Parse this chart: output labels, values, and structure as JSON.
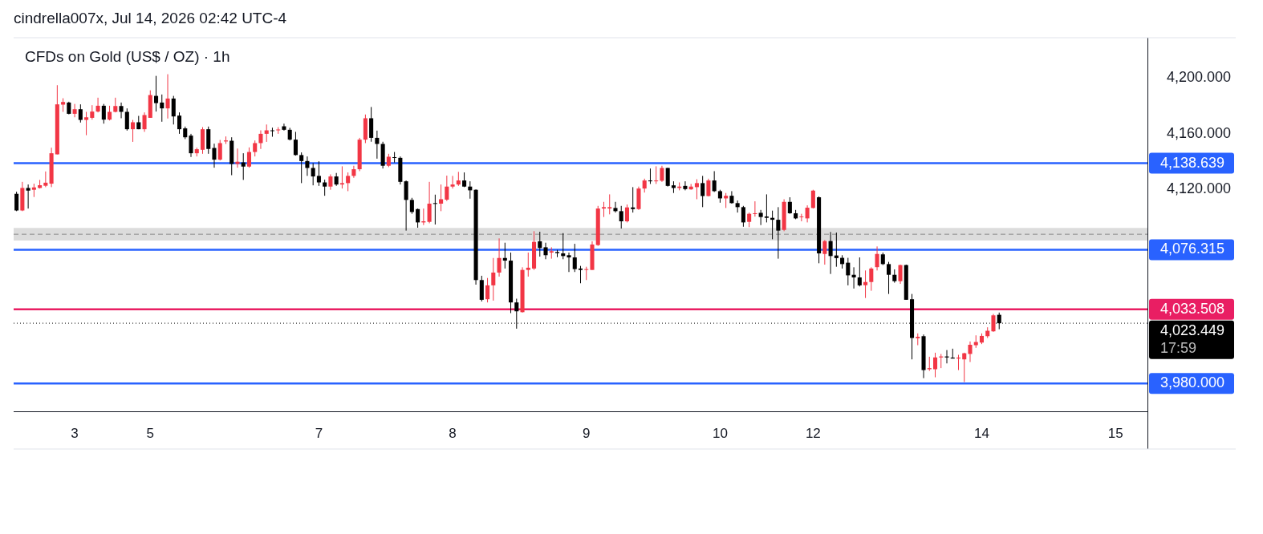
{
  "chart_data": {
    "type": "candlestick",
    "title": "CFDs on Gold (US$ / OZ) · 1h",
    "annotations": [
      "cindrella007x, Jul 14, 2026 02:42 UTC-4"
    ],
    "categories": [
      null,
      null,
      null,
      null,
      null,
      null,
      null,
      null,
      null,
      null,
      "3",
      null,
      null,
      null,
      null,
      null,
      null,
      null,
      null,
      null,
      null,
      null,
      null,
      "5",
      null,
      null,
      null,
      null,
      null,
      null,
      null,
      null,
      null,
      null,
      null,
      null,
      null,
      null,
      null,
      null,
      null,
      null,
      null,
      null,
      null,
      null,
      null,
      null,
      null,
      null,
      null,
      null,
      "7",
      null,
      null,
      null,
      null,
      null,
      null,
      null,
      null,
      null,
      null,
      null,
      null,
      null,
      null,
      null,
      null,
      null,
      null,
      null,
      null,
      null,
      null,
      "8",
      null,
      null,
      null,
      null,
      null,
      null,
      null,
      null,
      null,
      null,
      null,
      null,
      null,
      null,
      null,
      null,
      null,
      null,
      null,
      null,
      null,
      null,
      "9",
      null,
      null,
      null,
      null,
      null,
      null,
      null,
      null,
      null,
      null,
      null,
      null,
      null,
      null,
      null,
      null,
      null,
      null,
      null,
      null,
      null,
      null,
      "10",
      null,
      null,
      null,
      null,
      null,
      null,
      null,
      null,
      null,
      null,
      null,
      null,
      null,
      null,
      null,
      "12",
      null,
      null,
      null,
      null,
      null,
      null,
      null,
      null,
      null,
      null,
      null,
      null,
      null,
      null,
      null,
      null,
      null,
      null,
      null,
      null,
      null,
      null,
      null,
      null,
      null,
      null,
      null,
      null,
      "14",
      null,
      null,
      null,
      null,
      null,
      null,
      null,
      null,
      null,
      null,
      null,
      null,
      null,
      null,
      null,
      null,
      null,
      null,
      null,
      null,
      null,
      null,
      "15",
      null,
      null,
      null,
      null,
      null
    ],
    "ohlc": [
      [
        4116.6,
        4118.1,
        4104.1,
        4104.6
      ],
      [
        4104.6,
        4125.2,
        4104.1,
        4120.8
      ],
      [
        4120.8,
        4123.3,
        4106.0,
        4118.9
      ],
      [
        4119.5,
        4123.9,
        4114.3,
        4121.2
      ],
      [
        4120.8,
        4126.6,
        4120.4,
        4122.8
      ],
      [
        4122.4,
        4132.7,
        4121.4,
        4124.6
      ],
      [
        4123.9,
        4149.8,
        4121.4,
        4145.8
      ],
      [
        4145.0,
        4194.8,
        4145.0,
        4181.0
      ],
      [
        4180.8,
        4185.4,
        4175.6,
        4182.7
      ],
      [
        4182.3,
        4182.9,
        4173.8,
        4174.2
      ],
      [
        4174.2,
        4181.3,
        4171.7,
        4177.5
      ],
      [
        4177.5,
        4181.0,
        4167.9,
        4169.8
      ],
      [
        4169.8,
        4175.6,
        4158.8,
        4171.7
      ],
      [
        4171.3,
        4180.4,
        4170.0,
        4175.8
      ],
      [
        4175.8,
        4185.8,
        4175.2,
        4180.0
      ],
      [
        4180.0,
        4181.3,
        4167.1,
        4170.0
      ],
      [
        4170.0,
        4180.0,
        4169.4,
        4175.6
      ],
      [
        4175.6,
        4185.8,
        4175.2,
        4179.8
      ],
      [
        4179.8,
        4182.3,
        4171.0,
        4175.6
      ],
      [
        4175.6,
        4178.1,
        4162.1,
        4163.1
      ],
      [
        4163.1,
        4169.8,
        4154.0,
        4168.1
      ],
      [
        4168.1,
        4172.7,
        4163.1,
        4163.1
      ],
      [
        4163.1,
        4175.2,
        4161.2,
        4173.3
      ],
      [
        4171.3,
        4191.1,
        4171.3,
        4187.7
      ],
      [
        4187.1,
        4201.5,
        4175.8,
        4181.9
      ],
      [
        4182.3,
        4188.1,
        4168.5,
        4178.1
      ],
      [
        4178.1,
        4202.7,
        4170.8,
        4185.2
      ],
      [
        4185.2,
        4187.1,
        4166.5,
        4172.3
      ],
      [
        4172.9,
        4175.2,
        4159.8,
        4163.1
      ],
      [
        4163.7,
        4165.0,
        4156.0,
        4157.3
      ],
      [
        4158.5,
        4159.8,
        4143.1,
        4145.8
      ],
      [
        4145.8,
        4149.8,
        4143.5,
        4148.7
      ],
      [
        4148.3,
        4164.6,
        4145.4,
        4163.1
      ],
      [
        4163.1,
        4165.0,
        4145.4,
        4148.9
      ],
      [
        4149.6,
        4152.7,
        4135.4,
        4141.2
      ],
      [
        4141.2,
        4155.4,
        4140.6,
        4153.1
      ],
      [
        4154.3,
        4157.9,
        4152.5,
        4155.0
      ],
      [
        4154.8,
        4157.3,
        4130.0,
        4138.1
      ],
      [
        4138.1,
        4149.2,
        4135.4,
        4139.7
      ],
      [
        4139.2,
        4145.8,
        4126.6,
        4136.2
      ],
      [
        4136.2,
        4150.0,
        4135.4,
        4146.7
      ],
      [
        4146.7,
        4155.0,
        4143.5,
        4153.1
      ],
      [
        4153.1,
        4162.3,
        4148.9,
        4159.8
      ],
      [
        4159.8,
        4166.5,
        4154.0,
        4162.3
      ],
      [
        4162.3,
        4164.2,
        4157.7,
        4162.1
      ],
      [
        4162.3,
        4164.6,
        4159.8,
        4162.9
      ],
      [
        4165.2,
        4167.1,
        4162.1,
        4162.7
      ],
      [
        4162.7,
        4164.1,
        4155.0,
        4155.6
      ],
      [
        4155.6,
        4161.2,
        4144.1,
        4144.5
      ],
      [
        4144.5,
        4146.4,
        4124.3,
        4140.2
      ],
      [
        4140.2,
        4143.5,
        4129.5,
        4135.2
      ],
      [
        4135.2,
        4138.7,
        4122.7,
        4129.1
      ],
      [
        4129.5,
        4140.0,
        4122.3,
        4124.8
      ],
      [
        4124.8,
        4126.8,
        4115.2,
        4121.8
      ],
      [
        4121.8,
        4130.6,
        4119.5,
        4129.1
      ],
      [
        4129.1,
        4131.6,
        4122.3,
        4123.3
      ],
      [
        4123.3,
        4136.4,
        4120.4,
        4124.3
      ],
      [
        4124.3,
        4132.0,
        4118.5,
        4129.5
      ],
      [
        4129.5,
        4136.8,
        4128.1,
        4134.3
      ],
      [
        4134.3,
        4156.9,
        4132.9,
        4155.6
      ],
      [
        4155.6,
        4173.7,
        4153.1,
        4171.0
      ],
      [
        4171.0,
        4179.1,
        4154.1,
        4156.9
      ],
      [
        4156.9,
        4162.1,
        4141.9,
        4152.5
      ],
      [
        4152.5,
        4154.1,
        4134.8,
        4136.8
      ],
      [
        4136.8,
        4145.4,
        4135.8,
        4143.3
      ],
      [
        4143.0,
        4146.7,
        4139.1,
        4142.5
      ],
      [
        4142.5,
        4143.5,
        4123.3,
        4125.2
      ],
      [
        4125.6,
        4126.2,
        4090.1,
        4112.2
      ],
      [
        4112.2,
        4113.7,
        4102.2,
        4103.5
      ],
      [
        4105.6,
        4106.0,
        4092.2,
        4096.0
      ],
      [
        4096.0,
        4106.0,
        4094.1,
        4096.8
      ],
      [
        4096.4,
        4125.2,
        4095.4,
        4109.5
      ],
      [
        4109.9,
        4116.0,
        4094.5,
        4109.5
      ],
      [
        4109.5,
        4123.3,
        4104.1,
        4112.7
      ],
      [
        4112.4,
        4129.7,
        4111.4,
        4121.8
      ],
      [
        4121.8,
        4129.5,
        4120.4,
        4123.3
      ],
      [
        4123.3,
        4132.4,
        4122.3,
        4126.2
      ],
      [
        4126.2,
        4132.0,
        4121.4,
        4121.8
      ],
      [
        4121.8,
        4125.6,
        4113.1,
        4119.1
      ],
      [
        4119.5,
        4119.8,
        4051.2,
        4054.5
      ],
      [
        4054.5,
        4057.6,
        4039.1,
        4040.3
      ],
      [
        4040.7,
        4056.0,
        4038.4,
        4050.7
      ],
      [
        4050.7,
        4070.4,
        4039.7,
        4059.9
      ],
      [
        4059.9,
        4084.5,
        4057.0,
        4070.4
      ],
      [
        4070.4,
        4081.4,
        4062.8,
        4068.5
      ],
      [
        4068.5,
        4074.3,
        4030.7,
        4038.4
      ],
      [
        4038.4,
        4041.1,
        4019.5,
        4032.0
      ],
      [
        4031.4,
        4063.7,
        4031.1,
        4061.8
      ],
      [
        4061.8,
        4074.3,
        4057.0,
        4063.4
      ],
      [
        4062.8,
        4089.7,
        4061.8,
        4082.0
      ],
      [
        4082.4,
        4089.3,
        4071.4,
        4077.6
      ],
      [
        4078.1,
        4081.4,
        4069.5,
        4072.4
      ],
      [
        4074.3,
        4078.1,
        4069.9,
        4075.3
      ],
      [
        4074.7,
        4076.2,
        4071.0,
        4073.9
      ],
      [
        4073.7,
        4088.3,
        4069.5,
        4071.8
      ],
      [
        4072.4,
        4074.3,
        4060.3,
        4070.8
      ],
      [
        4070.8,
        4080.6,
        4060.3,
        4062.4
      ],
      [
        4062.8,
        4064.7,
        4052.2,
        4061.8
      ],
      [
        4061.8,
        4064.1,
        4054.5,
        4062.4
      ],
      [
        4061.8,
        4082.4,
        4061.8,
        4080.1
      ],
      [
        4079.7,
        4107.9,
        4079.1,
        4106.0
      ],
      [
        4106.0,
        4110.8,
        4099.9,
        4107.0
      ],
      [
        4106.0,
        4116.2,
        4101.8,
        4107.0
      ],
      [
        4106.4,
        4110.8,
        4103.1,
        4104.1
      ],
      [
        4104.1,
        4107.9,
        4091.6,
        4096.8
      ],
      [
        4096.8,
        4108.9,
        4096.0,
        4106.8
      ],
      [
        4106.8,
        4121.4,
        4103.1,
        4105.6
      ],
      [
        4105.6,
        4121.8,
        4105.0,
        4120.4
      ],
      [
        4120.4,
        4127.5,
        4117.5,
        4126.2
      ],
      [
        4126.2,
        4134.8,
        4123.7,
        4125.6
      ],
      [
        4125.6,
        4136.4,
        4123.7,
        4126.2
      ],
      [
        4126.0,
        4136.8,
        4125.2,
        4135.2
      ],
      [
        4135.2,
        4135.3,
        4121.8,
        4122.3
      ],
      [
        4122.7,
        4125.6,
        4117.2,
        4120.8
      ],
      [
        4120.8,
        4124.8,
        4119.1,
        4121.8
      ],
      [
        4122.3,
        4125.6,
        4119.1,
        4120.0
      ],
      [
        4119.8,
        4123.7,
        4119.5,
        4121.8
      ],
      [
        4121.4,
        4127.1,
        4112.7,
        4124.3
      ],
      [
        4124.3,
        4129.5,
        4107.0,
        4115.0
      ],
      [
        4115.0,
        4127.5,
        4114.7,
        4126.2
      ],
      [
        4126.2,
        4132.9,
        4117.9,
        4118.5
      ],
      [
        4118.5,
        4119.5,
        4110.2,
        4113.3
      ],
      [
        4113.3,
        4117.2,
        4106.4,
        4115.2
      ],
      [
        4115.2,
        4118.5,
        4109.5,
        4109.9
      ],
      [
        4109.9,
        4111.8,
        4103.1,
        4107.0
      ],
      [
        4107.0,
        4107.9,
        4092.9,
        4096.0
      ],
      [
        4096.4,
        4103.1,
        4092.6,
        4102.2
      ],
      [
        4102.0,
        4111.2,
        4100.2,
        4102.6
      ],
      [
        4102.9,
        4105.0,
        4094.1,
        4099.9
      ],
      [
        4100.3,
        4116.2,
        4096.0,
        4099.3
      ],
      [
        4099.3,
        4104.5,
        4083.9,
        4097.9
      ],
      [
        4097.9,
        4107.0,
        4069.9,
        4090.1
      ],
      [
        4090.6,
        4112.7,
        4089.7,
        4110.8
      ],
      [
        4110.8,
        4114.1,
        4102.2,
        4102.6
      ],
      [
        4102.6,
        4105.0,
        4098.3,
        4098.9
      ],
      [
        4099.9,
        4102.2,
        4096.8,
        4100.3
      ],
      [
        4098.9,
        4108.3,
        4096.0,
        4106.6
      ],
      [
        4106.4,
        4119.5,
        4106.0,
        4118.9
      ],
      [
        4114.1,
        4114.7,
        4066.6,
        4073.7
      ],
      [
        4073.3,
        4083.3,
        4065.6,
        4082.6
      ],
      [
        4082.6,
        4089.1,
        4058.9,
        4071.8
      ],
      [
        4072.2,
        4088.7,
        4064.1,
        4070.3
      ],
      [
        4070.5,
        4072.4,
        4062.8,
        4066.0
      ],
      [
        4067.0,
        4070.5,
        4050.7,
        4057.9
      ],
      [
        4058.3,
        4063.7,
        4048.4,
        4056.4
      ],
      [
        4056.4,
        4070.8,
        4049.9,
        4050.7
      ],
      [
        4050.8,
        4061.4,
        4041.6,
        4053.1
      ],
      [
        4053.1,
        4063.7,
        4046.8,
        4062.8
      ],
      [
        4063.8,
        4078.7,
        4061.4,
        4073.3
      ],
      [
        4073.0,
        4074.3,
        4065.3,
        4066.0
      ],
      [
        4066.0,
        4067.6,
        4044.5,
        4058.3
      ],
      [
        4058.3,
        4062.2,
        4052.6,
        4053.7
      ],
      [
        4053.7,
        4065.6,
        4051.8,
        4065.3
      ],
      [
        4065.3,
        4065.6,
        4040.3,
        4040.3
      ],
      [
        4040.7,
        4044.5,
        3997.4,
        4012.8
      ],
      [
        4012.6,
        4016.1,
        4007.6,
        4013.7
      ],
      [
        4014.1,
        4015.3,
        3983.9,
        3989.7
      ],
      [
        3990.3,
        3999.3,
        3989.1,
        3991.1
      ],
      [
        3990.3,
        4002.2,
        3984.5,
        3998.8
      ],
      [
        3998.8,
        4001.3,
        3991.1,
        3999.5
      ],
      [
        3999.5,
        4004.1,
        3994.5,
        3998.8
      ],
      [
        3998.7,
        4005.1,
        3998.0,
        3998.0
      ],
      [
        3998.0,
        4000.7,
        3989.7,
        3998.7
      ],
      [
        3997.4,
        4002.2,
        3981.1,
        4001.8
      ],
      [
        4001.3,
        4010.3,
        3995.5,
        4007.9
      ],
      [
        4007.6,
        4014.7,
        4005.7,
        4009.9
      ],
      [
        4009.5,
        4016.1,
        4008.4,
        4014.3
      ],
      [
        4014.1,
        4020.5,
        4012.8,
        4018.0
      ],
      [
        4017.6,
        4030.1,
        4017.2,
        4029.1
      ],
      [
        4029.5,
        4031.1,
        4019.1,
        4023.4
      ],
      null,
      null,
      null,
      null,
      null,
      null,
      null,
      null,
      null,
      null,
      null,
      null,
      null,
      null,
      null,
      null,
      null,
      null,
      null,
      null,
      null,
      null,
      null,
      null,
      null
    ],
    "colors": [
      "#000000",
      "#f23645",
      "#000000",
      "#f23645",
      "#f23645",
      "#f23645",
      "#f23645",
      "#f23645",
      "#f23645",
      "#000000",
      "#f23645",
      "#000000",
      "#f23645",
      "#f23645",
      "#f23645",
      "#000000",
      "#f23645",
      "#f23645",
      "#000000",
      "#000000",
      "#f23645",
      "#000000",
      "#f23645",
      "#f23645",
      "#000000",
      "#000000",
      "#f23645",
      "#000000",
      "#000000",
      "#000000",
      "#000000",
      "#f23645",
      "#f23645",
      "#000000",
      "#000000",
      "#f23645",
      "#f23645",
      "#000000",
      "#f23645",
      "#000000",
      "#f23645",
      "#f23645",
      "#f23645",
      "#f23645",
      "#000000",
      "#f23645",
      "#000000",
      "#000000",
      "#000000",
      "#000000",
      "#000000",
      "#000000",
      "#000000",
      "#000000",
      "#f23645",
      "#000000",
      "#f23645",
      "#f23645",
      "#f23645",
      "#f23645",
      "#f23645",
      "#000000",
      "#000000",
      "#000000",
      "#f23645",
      "#000000",
      "#000000",
      "#000000",
      "#000000",
      "#000000",
      "#f23645",
      "#f23645",
      "#000000",
      "#f23645",
      "#f23645",
      "#f23645",
      "#f23645",
      "#000000",
      "#000000",
      "#000000",
      "#000000",
      "#f23645",
      "#f23645",
      "#f23645",
      "#000000",
      "#000000",
      "#000000",
      "#f23645",
      "#f23645",
      "#f23645",
      "#000000",
      "#000000",
      "#f23645",
      "#000000",
      "#000000",
      "#000000",
      "#000000",
      "#000000",
      "#f23645",
      "#f23645",
      "#f23645",
      "#f23645",
      "#f23645",
      "#000000",
      "#000000",
      "#f23645",
      "#000000",
      "#f23645",
      "#f23645",
      "#000000",
      "#f23645",
      "#f23645",
      "#000000",
      "#000000",
      "#f23645",
      "#000000",
      "#f23645",
      "#f23645",
      "#000000",
      "#f23645",
      "#000000",
      "#000000",
      "#f23645",
      "#000000",
      "#000000",
      "#000000",
      "#f23645",
      "#f23645",
      "#000000",
      "#000000",
      "#000000",
      "#000000",
      "#f23645",
      "#000000",
      "#000000",
      "#f23645",
      "#f23645",
      "#f23645",
      "#000000",
      "#f23645",
      "#000000",
      "#000000",
      "#000000",
      "#000000",
      "#000000",
      "#000000",
      "#f23645",
      "#f23645",
      "#f23645",
      "#000000",
      "#000000",
      "#000000",
      "#f23645",
      "#000000",
      "#000000",
      "#f23645",
      "#000000",
      "#f23645",
      "#f23645",
      "#f23645",
      "#000000",
      "#000000",
      "#f23645",
      "#f23645",
      "#f23645",
      "#f23645",
      "#f23645",
      "#f23645",
      "#f23645",
      "#000000",
      null,
      null,
      null,
      null,
      null,
      null,
      null,
      null,
      null,
      null,
      null,
      null,
      null,
      null,
      null,
      null,
      null,
      null,
      null,
      null,
      null,
      null,
      null,
      null,
      null
    ],
    "ylim": [
      3960,
      4229
    ],
    "yticks": [
      {
        "value": 4200,
        "label": "4,200.000"
      },
      {
        "value": 4160,
        "label": "4,160.000"
      },
      {
        "value": 4120,
        "label": "4,120.000"
      }
    ],
    "bands": [
      {
        "axis": "y",
        "from": 4083,
        "to": 4092,
        "color": "#dcdcdc"
      }
    ],
    "ref_lines": [
      {
        "axis": "y",
        "value": 4087.5,
        "color": "#888888",
        "line_style": "dashed"
      },
      {
        "axis": "y",
        "value": 4138.639,
        "label": "4,138.639",
        "color": "#2962ff"
      },
      {
        "axis": "y",
        "value": 4076.315,
        "label": "4,076.315",
        "color": "#2962ff"
      },
      {
        "axis": "y",
        "value": 3980,
        "label": "3,980.000",
        "color": "#2962ff"
      },
      {
        "axis": "y",
        "value": 4033.508,
        "label": "4,033.508",
        "color": "#e91e63"
      },
      {
        "axis": "y",
        "value": 4023.449,
        "label": "4,023.449\n17:59",
        "color": "#000000",
        "line_style": "dotted"
      }
    ]
  }
}
